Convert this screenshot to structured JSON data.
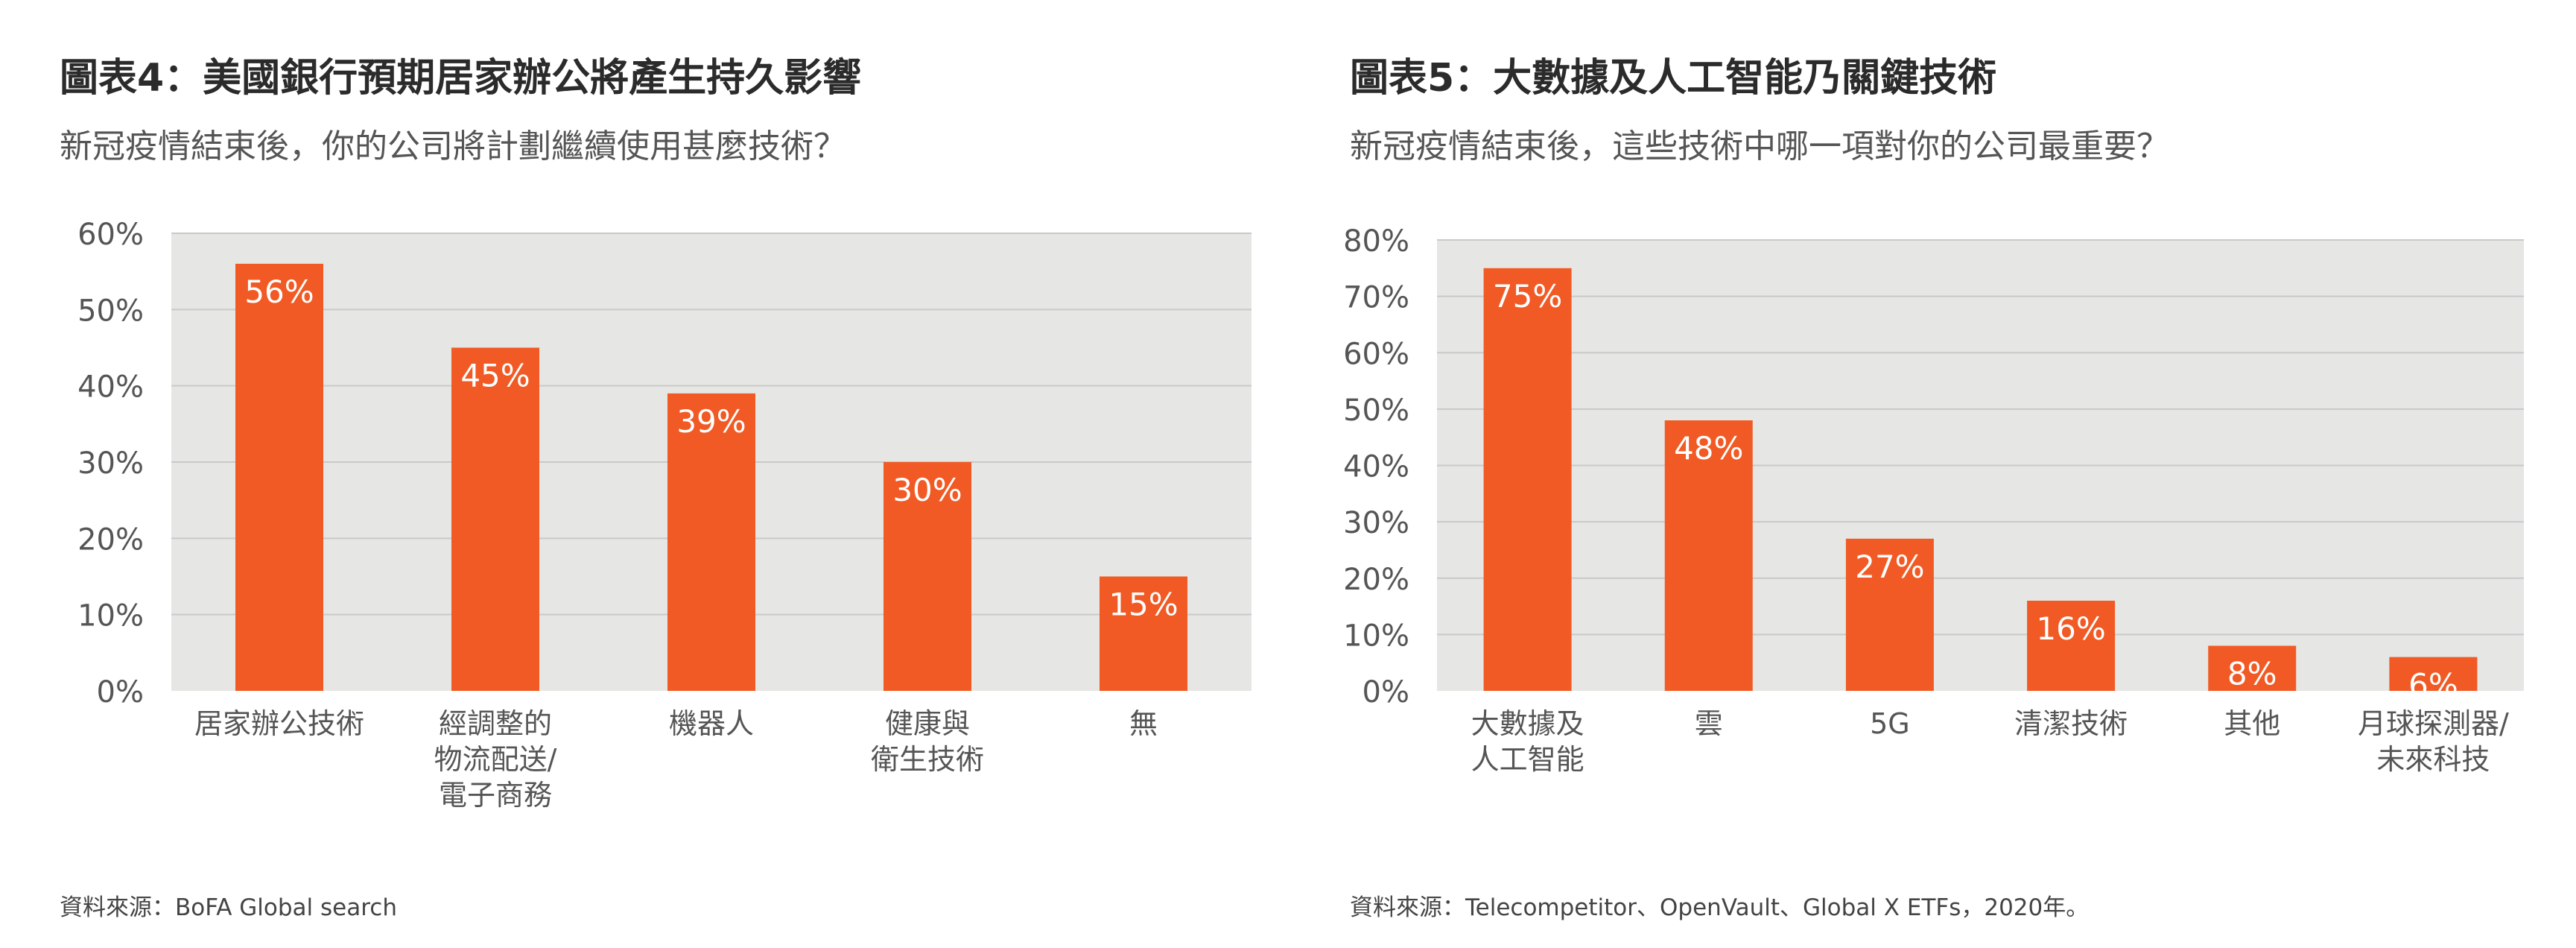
{
  "charts": [
    {
      "title": "圖表4：美國銀行預期居家辦公將產生持久影響",
      "subtitle": "新冠疫情結束後，你的公司將計劃繼續使用甚麼技術？",
      "source": "資料來源：BoFA Global search",
      "chart_data": {
        "type": "bar",
        "categories": [
          [
            "居家辦公技術"
          ],
          [
            "經調整的",
            "物流配送/",
            "電子商務"
          ],
          [
            "機器人"
          ],
          [
            "健康與",
            "衛生技術"
          ],
          [
            "無"
          ]
        ],
        "values": [
          56,
          45,
          39,
          30,
          15
        ],
        "data_labels": [
          "56%",
          "45%",
          "39%",
          "30%",
          "15%"
        ],
        "yticks": [
          "0%",
          "10%",
          "20%",
          "30%",
          "40%",
          "50%",
          "60%"
        ],
        "ylim": [
          0,
          60
        ],
        "grid": true,
        "colors": {
          "bar": "#f15a24",
          "plot_bg": "#e6e6e5",
          "grid": "#c9c9c9",
          "label": "#ffffff",
          "axis_text": "#555555"
        }
      }
    },
    {
      "title": "圖表5：大數據及人工智能乃關鍵技術",
      "subtitle": "新冠疫情結束後，這些技術中哪一項對你的公司最重要？",
      "source": "資料來源：Telecompetitor、OpenVault、Global X ETFs，2020年。",
      "chart_data": {
        "type": "bar",
        "categories": [
          [
            "大數據及",
            "人工智能"
          ],
          [
            "雲"
          ],
          [
            "5G"
          ],
          [
            "清潔技術"
          ],
          [
            "其他"
          ],
          [
            "月球探測器/",
            "未來科技"
          ]
        ],
        "values": [
          75,
          48,
          27,
          16,
          8,
          6
        ],
        "data_labels": [
          "75%",
          "48%",
          "27%",
          "16%",
          "8%",
          "6%"
        ],
        "yticks": [
          "0%",
          "10%",
          "20%",
          "30%",
          "40%",
          "50%",
          "60%",
          "70%",
          "80%"
        ],
        "ylim": [
          0,
          80
        ],
        "grid": true,
        "colors": {
          "bar": "#f15a24",
          "plot_bg": "#e6e6e5",
          "grid": "#c9c9c9",
          "label": "#ffffff",
          "axis_text": "#555555"
        }
      }
    }
  ]
}
